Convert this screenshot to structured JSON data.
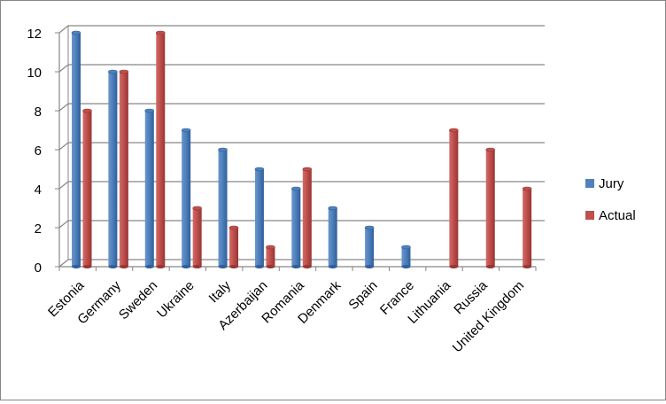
{
  "chart_data": {
    "type": "bar",
    "title": "",
    "xlabel": "",
    "ylabel": "",
    "categories": [
      "Estonia",
      "Germany",
      "Sweden",
      "Ukraine",
      "Italy",
      "Azerbaijan",
      "Romania",
      "Denmark",
      "Spain",
      "France",
      "Lithuania",
      "Russia",
      "United Kingdom"
    ],
    "series": [
      {
        "name": "Jury",
        "color": "#4F81BD",
        "values": [
          12,
          10,
          8,
          7,
          6,
          5,
          4,
          3,
          2,
          1,
          0,
          0,
          0
        ]
      },
      {
        "name": "Actual",
        "color": "#C0504D",
        "values": [
          8,
          10,
          12,
          3,
          2,
          1,
          5,
          0,
          0,
          0,
          7,
          6,
          4
        ]
      }
    ],
    "ylim": [
      0,
      12
    ],
    "yticks": [
      0,
      2,
      4,
      6,
      8,
      10,
      12
    ],
    "grid": true,
    "legend_position": "right"
  }
}
